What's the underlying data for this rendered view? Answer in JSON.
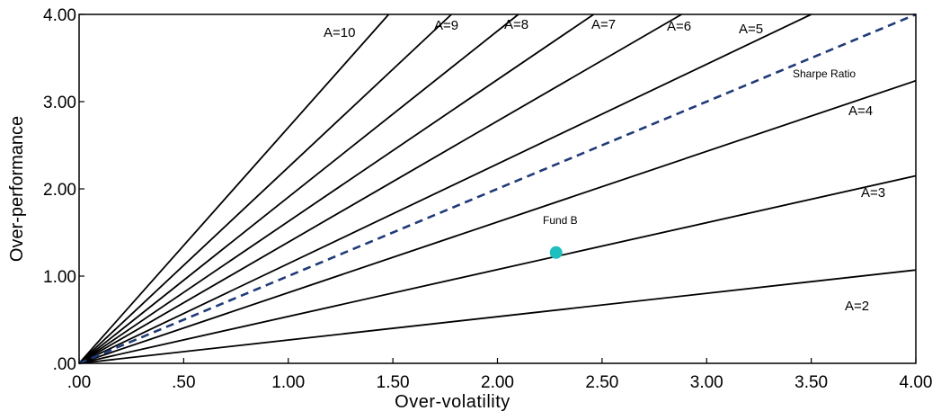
{
  "chart_data": {
    "type": "line",
    "title": "",
    "xlabel": "Over-volatility",
    "ylabel": "Over-performance",
    "xlim": [
      0,
      4
    ],
    "ylim": [
      0,
      4
    ],
    "x_ticks": [
      0,
      0.5,
      1,
      1.5,
      2,
      2.5,
      3,
      3.5,
      4
    ],
    "x_tick_labels": [
      ".00",
      ".50",
      "1.00",
      "1.50",
      "2.00",
      "2.50",
      "3.00",
      "3.50",
      "4.00"
    ],
    "y_ticks": [
      0,
      1,
      2,
      3,
      4
    ],
    "y_tick_labels": [
      ".00",
      "1.00",
      "2.00",
      "3.00",
      "4.00"
    ],
    "grid": false,
    "series": [
      {
        "label": "A=2",
        "x": [
          0,
          4
        ],
        "y": [
          0,
          1.07
        ]
      },
      {
        "label": "A=3",
        "x": [
          0,
          4
        ],
        "y": [
          0,
          2.15
        ]
      },
      {
        "label": "A=4",
        "x": [
          0,
          4
        ],
        "y": [
          0,
          3.24
        ]
      },
      {
        "label": "A=5",
        "x": [
          0,
          3.5
        ],
        "y": [
          0,
          4.0
        ]
      },
      {
        "label": "A=6",
        "x": [
          0,
          2.88
        ],
        "y": [
          0,
          4.0
        ]
      },
      {
        "label": "A=7",
        "x": [
          0,
          2.46
        ],
        "y": [
          0,
          4.0
        ]
      },
      {
        "label": "A=8",
        "x": [
          0,
          2.1
        ],
        "y": [
          0,
          4.0
        ]
      },
      {
        "label": "A=9",
        "x": [
          0,
          1.78
        ],
        "y": [
          0,
          4.0
        ]
      },
      {
        "label": "A=10",
        "x": [
          0,
          1.48
        ],
        "y": [
          0,
          4.0
        ]
      }
    ],
    "sharpe_line": {
      "label": "Sharpe Ratio",
      "x": [
        0,
        4
      ],
      "y": [
        0,
        4.0
      ],
      "color": "#1f3a78",
      "style": "dashed"
    },
    "point": {
      "label": "Fund B",
      "x": 2.28,
      "y": 1.27,
      "color": "#1fbfbf"
    }
  }
}
